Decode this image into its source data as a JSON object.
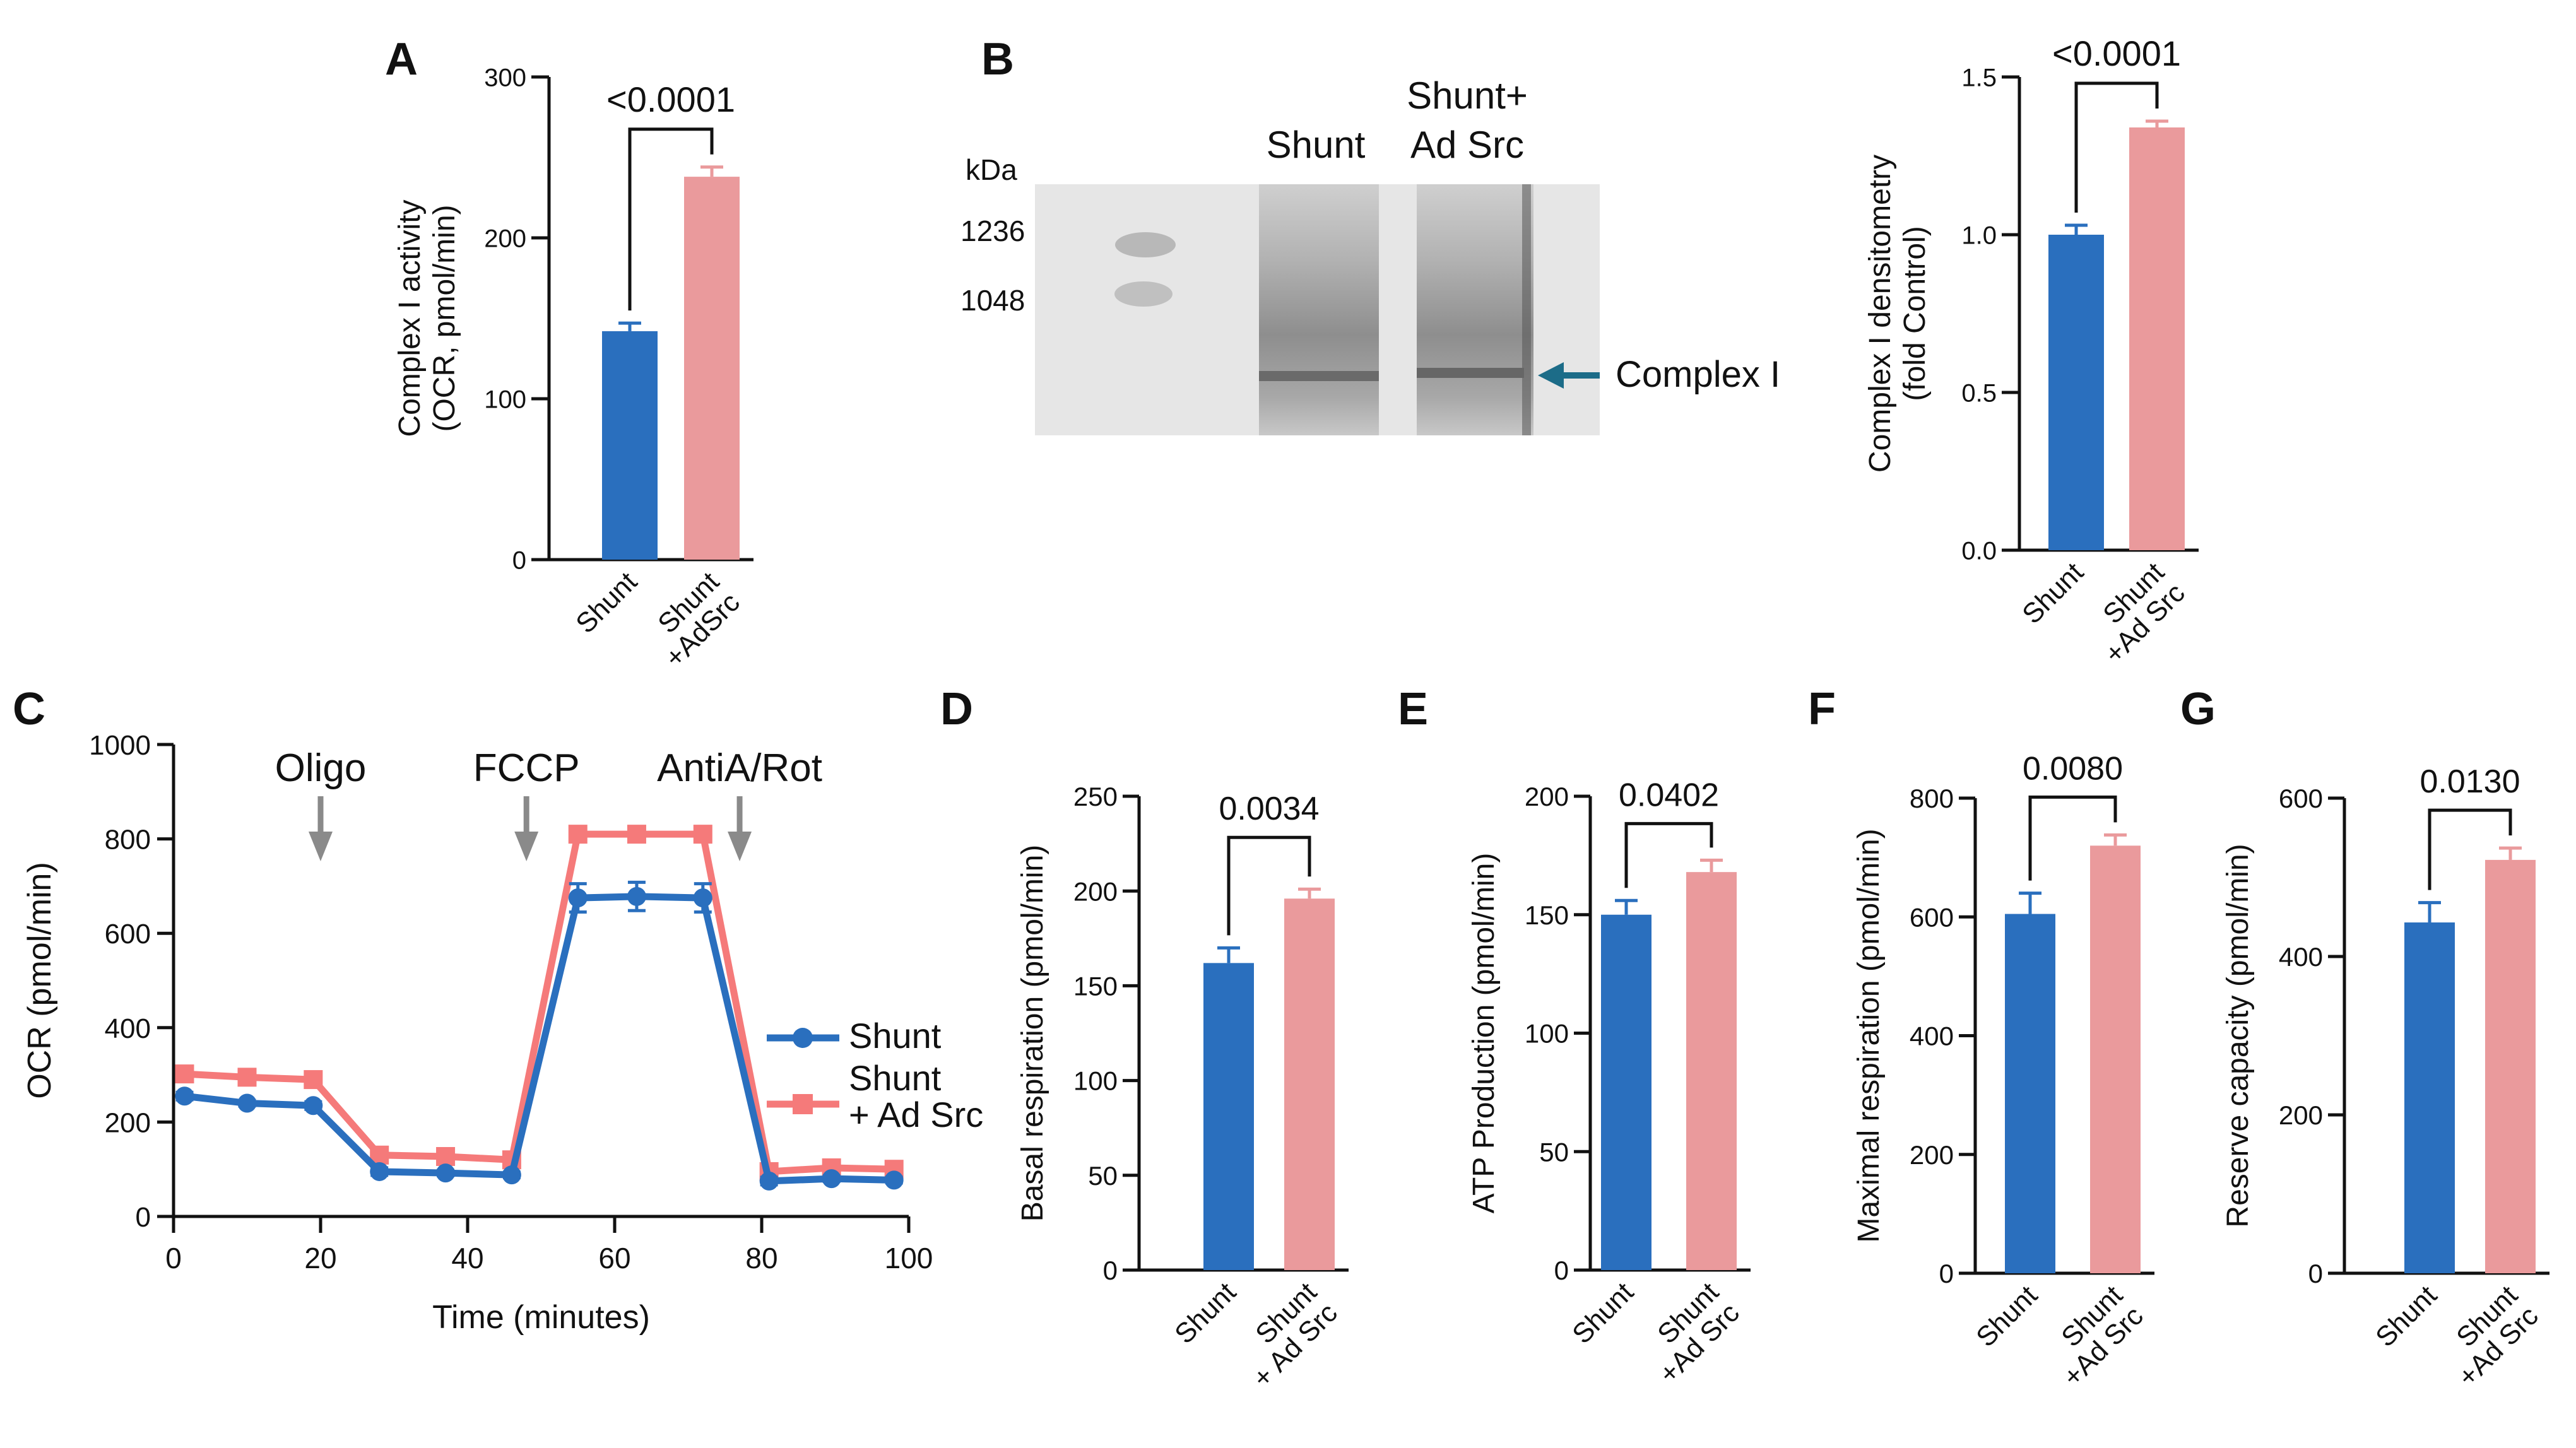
{
  "colors": {
    "shunt": "#2a6fbe",
    "adsrc": "#ea9a9c",
    "adsrc_line": "#f57a7a",
    "arrow_gray": "#8a8a8a",
    "blot_arrow": "#1c6c88",
    "axis": "#111111"
  },
  "panel_labels": {
    "a": "A",
    "b": "B",
    "c": "C",
    "d": "D",
    "e": "E",
    "f": "F",
    "g": "G"
  },
  "blot": {
    "kda": "kDa",
    "marker_1236": "1236",
    "marker_1048": "1048",
    "lane_shunt": "Shunt",
    "lane_adsrc_1": "Shunt+",
    "lane_adsrc_2": "Ad Src",
    "band_label": "Complex I"
  },
  "chart_data": [
    {
      "id": "A",
      "type": "bar",
      "categories": [
        "Shunt",
        "Shunt +AdSrc"
      ],
      "category_lines": [
        [
          "Shunt"
        ],
        [
          "Shunt",
          "+AdSrc"
        ]
      ],
      "values": [
        142,
        238
      ],
      "errors": [
        5,
        6
      ],
      "ylabel_lines": [
        "Complex I activity",
        "(OCR, pmol/min)"
      ],
      "ylim": [
        0,
        300
      ],
      "yticks": [
        "0",
        "100",
        "200",
        "300"
      ],
      "significance": "<0.0001"
    },
    {
      "id": "B",
      "type": "bar",
      "categories": [
        "Shunt",
        "Shunt +Ad Src"
      ],
      "category_lines": [
        [
          "Shunt"
        ],
        [
          "Shunt",
          "+Ad Src"
        ]
      ],
      "values": [
        1.0,
        1.34
      ],
      "errors": [
        0.03,
        0.02
      ],
      "ylabel_lines": [
        "Complex I densitometry",
        "(fold Control)"
      ],
      "ylim": [
        0,
        1.5
      ],
      "yticks": [
        "0.0",
        "0.5",
        "1.0",
        "1.5"
      ],
      "significance": "<0.0001"
    },
    {
      "id": "C",
      "type": "line",
      "xlabel": "Time (minutes)",
      "ylabel": "OCR (pmol/min)",
      "xlim": [
        0,
        100
      ],
      "ylim": [
        0,
        1000
      ],
      "xticks": [
        "0",
        "20",
        "40",
        "60",
        "80",
        "100"
      ],
      "yticks": [
        "0",
        "200",
        "400",
        "600",
        "800",
        "1000"
      ],
      "x": [
        1.5,
        10,
        19,
        28,
        37,
        46,
        55,
        63,
        72,
        81,
        89.5,
        98
      ],
      "series": [
        {
          "name": "Shunt",
          "legend_lines": [
            "Shunt"
          ],
          "marker": "circle",
          "values": [
            255,
            240,
            235,
            95,
            92,
            88,
            675,
            678,
            675,
            75,
            80,
            77
          ],
          "errors": [
            8,
            6,
            8,
            8,
            6,
            6,
            30,
            30,
            30,
            8,
            6,
            6
          ]
        },
        {
          "name": "Shunt + Ad Src",
          "legend_lines": [
            "Shunt",
            "+ Ad Src"
          ],
          "marker": "square",
          "values": [
            302,
            295,
            290,
            130,
            127,
            120,
            810,
            810,
            810,
            95,
            103,
            100
          ],
          "errors": [
            8,
            6,
            6,
            8,
            6,
            6,
            15,
            15,
            15,
            8,
            6,
            6
          ]
        }
      ],
      "annotations": [
        {
          "label": "Oligo",
          "x": 20
        },
        {
          "label": "FCCP",
          "x": 48
        },
        {
          "label": "AntiA/Rot",
          "x": 77
        }
      ]
    },
    {
      "id": "D",
      "type": "bar",
      "categories": [
        "Shunt",
        "Shunt + Ad Src"
      ],
      "category_lines": [
        [
          "Shunt"
        ],
        [
          "Shunt",
          "+ Ad Src"
        ]
      ],
      "values": [
        162,
        196
      ],
      "errors": [
        8,
        5
      ],
      "ylabel_lines": [
        "Basal respiration (pmol/min)"
      ],
      "ylim": [
        0,
        250
      ],
      "yticks": [
        "0",
        "50",
        "100",
        "150",
        "200",
        "250"
      ],
      "significance": "0.0034"
    },
    {
      "id": "E",
      "type": "bar",
      "categories": [
        "Shunt",
        "Shunt +Ad Src"
      ],
      "category_lines": [
        [
          "Shunt"
        ],
        [
          "Shunt",
          "+Ad Src"
        ]
      ],
      "values": [
        150,
        168
      ],
      "errors": [
        6,
        5
      ],
      "ylabel_lines": [
        "ATP Production (pmol/min)"
      ],
      "ylim": [
        0,
        200
      ],
      "yticks": [
        "0",
        "50",
        "100",
        "150",
        "200"
      ],
      "significance": "0.0402"
    },
    {
      "id": "F",
      "type": "bar",
      "categories": [
        "Shunt",
        "Shunt +Ad Src"
      ],
      "category_lines": [
        [
          "Shunt"
        ],
        [
          "Shunt",
          "+Ad Src"
        ]
      ],
      "values": [
        605,
        720
      ],
      "errors": [
        35,
        18
      ],
      "ylabel_lines": [
        "Maximal respiration  (pmol/min)"
      ],
      "ylim": [
        0,
        800
      ],
      "yticks": [
        "0",
        "200",
        "400",
        "600",
        "800"
      ],
      "significance": "0.0080"
    },
    {
      "id": "G",
      "type": "bar",
      "categories": [
        "Shunt",
        "Shunt +Ad Src"
      ],
      "category_lines": [
        [
          "Shunt"
        ],
        [
          "Shunt",
          "+Ad Src"
        ]
      ],
      "values": [
        443,
        522
      ],
      "errors": [
        25,
        15
      ],
      "ylabel_lines": [
        "Reserve capacity  (pmol/min)"
      ],
      "ylim": [
        0,
        600
      ],
      "yticks": [
        "0",
        "200",
        "400",
        "600"
      ],
      "significance": "0.0130"
    }
  ]
}
